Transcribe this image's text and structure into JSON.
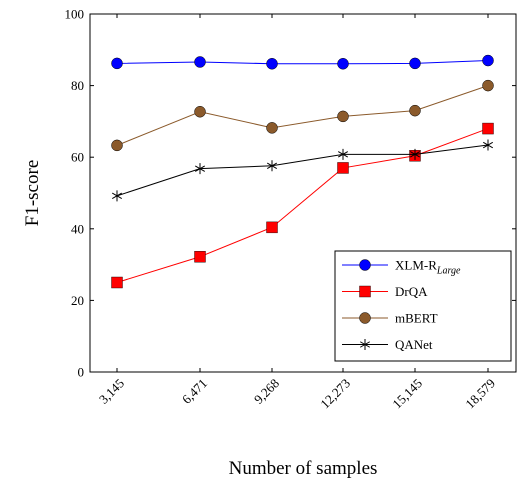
{
  "chart_data": {
    "type": "line",
    "xlabel": "Number of samples",
    "ylabel": "F1-score",
    "ylim": [
      0,
      100
    ],
    "y_ticks": [
      "0",
      "20",
      "40",
      "60",
      "80",
      "100"
    ],
    "categories": [
      "3,145",
      "6,471",
      "9,268",
      "12,273",
      "15,145",
      "18,579"
    ],
    "grid": false,
    "legend_position": "bottom-right",
    "series": [
      {
        "name": "XLM-R",
        "name_subscript": "Large",
        "color": "#0000ff",
        "marker": "circle",
        "values": [
          86.2,
          86.6,
          86.1,
          86.1,
          86.2,
          87.0
        ]
      },
      {
        "name": "DrQA",
        "color": "#ff0000",
        "marker": "square",
        "values": [
          25.0,
          32.2,
          40.4,
          57.0,
          60.4,
          68.0
        ]
      },
      {
        "name": "mBERT",
        "color": "#8b5a2b",
        "marker": "circle",
        "values": [
          63.3,
          72.7,
          68.2,
          71.4,
          73.0,
          80.0
        ]
      },
      {
        "name": "QANet",
        "color": "#000000",
        "marker": "star",
        "values": [
          49.2,
          56.8,
          57.6,
          60.8,
          60.8,
          63.4
        ]
      }
    ]
  }
}
